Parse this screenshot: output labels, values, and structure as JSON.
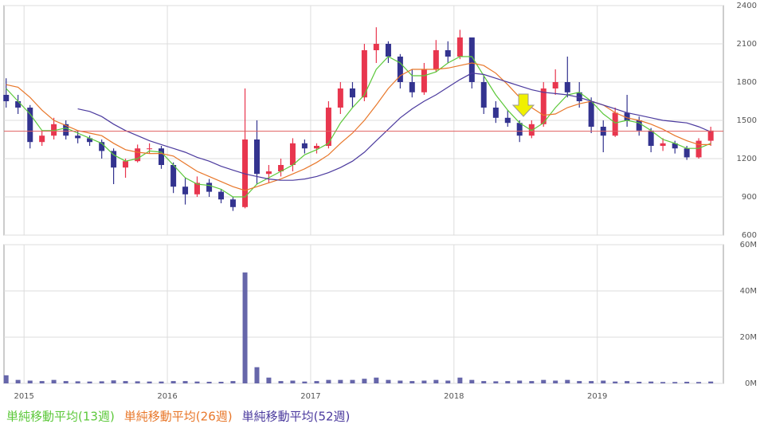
{
  "chart_data": [
    {
      "type": "candlestick",
      "x": [
        2014.875,
        2014.958,
        2015.042,
        2015.125,
        2015.208,
        2015.292,
        2015.375,
        2015.458,
        2015.542,
        2015.625,
        2015.708,
        2015.792,
        2015.875,
        2015.958,
        2016.042,
        2016.125,
        2016.208,
        2016.292,
        2016.375,
        2016.458,
        2016.542,
        2016.625,
        2016.708,
        2016.792,
        2016.875,
        2016.958,
        2017.042,
        2017.125,
        2017.208,
        2017.292,
        2017.375,
        2017.458,
        2017.542,
        2017.625,
        2017.708,
        2017.792,
        2017.875,
        2017.958,
        2018.042,
        2018.125,
        2018.208,
        2018.292,
        2018.375,
        2018.458,
        2018.542,
        2018.625,
        2018.708,
        2018.792,
        2018.875,
        2018.958,
        2019.042,
        2019.125,
        2019.208,
        2019.292,
        2019.375,
        2019.458,
        2019.542,
        2019.625,
        2019.708,
        2019.792
      ],
      "open": [
        1700,
        1650,
        1600,
        1330,
        1380,
        1470,
        1380,
        1360,
        1330,
        1260,
        1130,
        1180,
        1280,
        1280,
        1150,
        980,
        920,
        1010,
        940,
        880,
        820,
        1350,
        1080,
        1100,
        1150,
        1320,
        1280,
        1300,
        1600,
        1750,
        1680,
        2050,
        2100,
        2000,
        1800,
        1720,
        1900,
        2050,
        2000,
        2150,
        1800,
        1600,
        1520,
        1480,
        1380,
        1470,
        1750,
        1800,
        1720,
        1650,
        1450,
        1380,
        1560,
        1500,
        1420,
        1300,
        1320,
        1280,
        1210,
        1340
      ],
      "high": [
        1830,
        1700,
        1620,
        1420,
        1520,
        1500,
        1420,
        1380,
        1350,
        1280,
        1200,
        1310,
        1320,
        1300,
        1170,
        1050,
        1060,
        1040,
        960,
        900,
        1750,
        1500,
        1150,
        1200,
        1360,
        1350,
        1320,
        1650,
        1800,
        1800,
        2100,
        2230,
        2120,
        2020,
        1900,
        1950,
        2130,
        2120,
        2210,
        2150,
        1850,
        1650,
        1580,
        1500,
        1500,
        1800,
        1900,
        2000,
        1800,
        1680,
        1500,
        1600,
        1700,
        1530,
        1440,
        1360,
        1340,
        1300,
        1360,
        1450
      ],
      "low": [
        1600,
        1550,
        1280,
        1300,
        1350,
        1350,
        1320,
        1300,
        1200,
        1000,
        1050,
        1170,
        1240,
        1120,
        930,
        840,
        900,
        900,
        850,
        790,
        810,
        1000,
        1010,
        1060,
        1100,
        1240,
        1240,
        1280,
        1550,
        1600,
        1650,
        1950,
        1950,
        1750,
        1680,
        1700,
        1880,
        1950,
        1980,
        1750,
        1550,
        1480,
        1450,
        1330,
        1360,
        1450,
        1700,
        1680,
        1600,
        1400,
        1250,
        1370,
        1450,
        1380,
        1250,
        1260,
        1240,
        1190,
        1200,
        1300
      ],
      "close": [
        1650,
        1600,
        1330,
        1380,
        1470,
        1380,
        1360,
        1330,
        1260,
        1130,
        1180,
        1280,
        1280,
        1150,
        980,
        920,
        1010,
        940,
        880,
        820,
        1350,
        1080,
        1100,
        1150,
        1320,
        1280,
        1300,
        1600,
        1750,
        1680,
        2050,
        2100,
        2000,
        1800,
        1720,
        1900,
        2050,
        2000,
        2150,
        1800,
        1600,
        1520,
        1480,
        1380,
        1470,
        1750,
        1800,
        1720,
        1650,
        1450,
        1380,
        1560,
        1500,
        1420,
        1300,
        1320,
        1280,
        1210,
        1340,
        1420
      ],
      "up_color": "#e8364e",
      "down_color": "#33338f",
      "series": [
        {
          "name": "単純移動平均(13週)",
          "color": "#5cc83a",
          "values": [
            1750,
            1650,
            1550,
            1420,
            1420,
            1440,
            1400,
            1360,
            1320,
            1230,
            1180,
            1200,
            1260,
            1250,
            1150,
            1050,
            1000,
            990,
            960,
            900,
            900,
            1000,
            1050,
            1100,
            1150,
            1230,
            1270,
            1320,
            1480,
            1600,
            1700,
            1900,
            2000,
            1950,
            1850,
            1850,
            1880,
            1950,
            2000,
            2000,
            1850,
            1700,
            1580,
            1480,
            1420,
            1480,
            1600,
            1700,
            1720,
            1650,
            1550,
            1480,
            1500,
            1480,
            1420,
            1350,
            1320,
            1280,
            1280,
            1320
          ]
        },
        {
          "name": "単純移動平均(26週)",
          "color": "#e8772a",
          "values": [
            1780,
            1760,
            1680,
            1580,
            1500,
            1460,
            1420,
            1400,
            1380,
            1320,
            1270,
            1250,
            1240,
            1240,
            1220,
            1160,
            1100,
            1060,
            1020,
            980,
            950,
            980,
            1010,
            1040,
            1080,
            1120,
            1170,
            1230,
            1320,
            1400,
            1500,
            1620,
            1750,
            1850,
            1900,
            1900,
            1900,
            1910,
            1930,
            1950,
            1930,
            1870,
            1780,
            1680,
            1600,
            1540,
            1550,
            1600,
            1630,
            1650,
            1620,
            1560,
            1520,
            1500,
            1470,
            1430,
            1380,
            1340,
            1310,
            1310
          ]
        },
        {
          "name": "単純移動平均(52週)",
          "color": "#4b3a9e",
          "values": [
            null,
            null,
            null,
            null,
            null,
            null,
            1590,
            1570,
            1530,
            1470,
            1420,
            1380,
            1340,
            1310,
            1280,
            1250,
            1210,
            1180,
            1140,
            1110,
            1080,
            1060,
            1040,
            1030,
            1030,
            1040,
            1060,
            1090,
            1130,
            1180,
            1250,
            1340,
            1430,
            1520,
            1590,
            1650,
            1700,
            1760,
            1820,
            1870,
            1860,
            1830,
            1800,
            1770,
            1740,
            1720,
            1710,
            1700,
            1680,
            1650,
            1620,
            1590,
            1560,
            1540,
            1520,
            1500,
            1490,
            1480,
            1450,
            1410
          ]
        }
      ],
      "hline": 1415,
      "hline_color": "#e06060",
      "xlim": [
        2014.86,
        2019.88
      ],
      "xticks": [
        2015,
        2016,
        2017,
        2018,
        2019
      ],
      "ylim": [
        600,
        2400
      ],
      "yticks": [
        600,
        900,
        1200,
        1500,
        1800,
        2100,
        2400
      ],
      "grid": true
    },
    {
      "type": "bar",
      "x": [
        2014.875,
        2014.958,
        2015.042,
        2015.125,
        2015.208,
        2015.292,
        2015.375,
        2015.458,
        2015.542,
        2015.625,
        2015.708,
        2015.792,
        2015.875,
        2015.958,
        2016.042,
        2016.125,
        2016.208,
        2016.292,
        2016.375,
        2016.458,
        2016.542,
        2016.625,
        2016.708,
        2016.792,
        2016.875,
        2016.958,
        2017.042,
        2017.125,
        2017.208,
        2017.292,
        2017.375,
        2017.458,
        2017.542,
        2017.625,
        2017.708,
        2017.792,
        2017.875,
        2017.958,
        2018.042,
        2018.125,
        2018.208,
        2018.292,
        2018.375,
        2018.458,
        2018.542,
        2018.625,
        2018.708,
        2018.792,
        2018.875,
        2018.958,
        2019.042,
        2019.125,
        2019.208,
        2019.292,
        2019.375,
        2019.458,
        2019.542,
        2019.625,
        2019.708,
        2019.792
      ],
      "values": [
        3500000,
        1500000,
        1200000,
        1000000,
        1500000,
        1000000,
        900000,
        800000,
        900000,
        1300000,
        1000000,
        900000,
        800000,
        800000,
        1000000,
        1000000,
        800000,
        700000,
        700000,
        1000000,
        48000000,
        7000000,
        2500000,
        1000000,
        1200000,
        800000,
        1000000,
        1500000,
        1500000,
        1500000,
        2000000,
        2500000,
        1500000,
        1200000,
        1000000,
        1200000,
        1500000,
        1200000,
        2500000,
        1500000,
        1000000,
        900000,
        1000000,
        1200000,
        1000000,
        1500000,
        1200000,
        1500000,
        1000000,
        1000000,
        1200000,
        800000,
        1000000,
        700000,
        800000,
        600000,
        600000,
        700000,
        600000,
        800000
      ],
      "color": "#6666aa",
      "xlim": [
        2014.86,
        2019.88
      ],
      "xticks": [
        2015,
        2016,
        2017,
        2018,
        2019
      ],
      "ylim": [
        0,
        60000000
      ],
      "yticks": [
        {
          "value": 0,
          "label": "0M"
        },
        {
          "value": 20000000,
          "label": "20M"
        },
        {
          "value": 40000000,
          "label": "40M"
        },
        {
          "value": 60000000,
          "label": "60M"
        }
      ],
      "grid": true
    }
  ]
}
